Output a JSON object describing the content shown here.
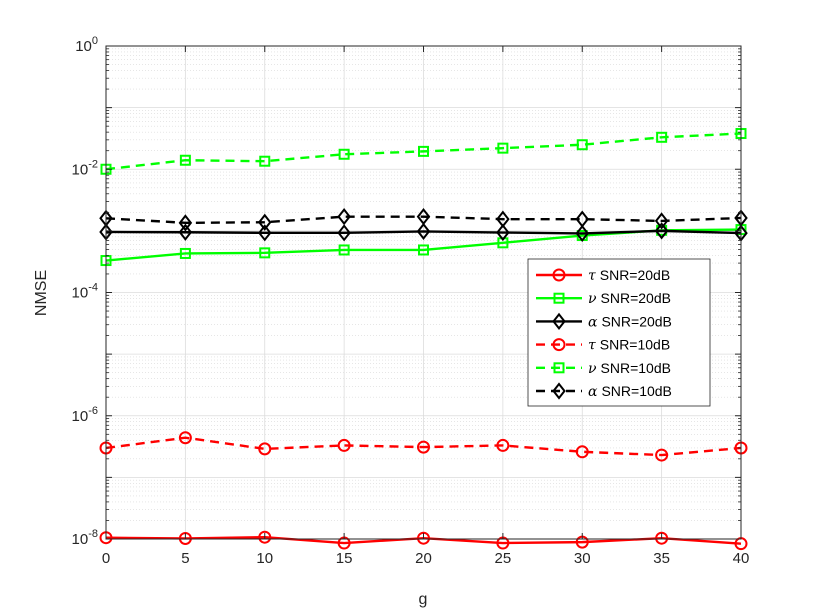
{
  "chart_data": {
    "type": "line",
    "xlabel": "g",
    "ylabel": "NMSE",
    "xlim": [
      0,
      40
    ],
    "ylim": [
      1e-08,
      1
    ],
    "y_scale": "log",
    "x_ticks": [
      0,
      5,
      10,
      15,
      20,
      25,
      30,
      35,
      40
    ],
    "y_ticks": [
      {
        "base": "10",
        "exp": "-8",
        "value": 1e-08
      },
      {
        "base": "10",
        "exp": "-6",
        "value": 1e-06
      },
      {
        "base": "10",
        "exp": "-4",
        "value": 0.0001
      },
      {
        "base": "10",
        "exp": "-2",
        "value": 0.01
      },
      {
        "base": "10",
        "exp": "0",
        "value": 1
      }
    ],
    "grid": true,
    "minor_grid": true,
    "legend_position": "right",
    "x": [
      0,
      5,
      10,
      15,
      20,
      25,
      30,
      35,
      40
    ],
    "series": [
      {
        "symbol": "τ",
        "label": "SNR=20dB",
        "color": "#ff0000",
        "line": "solid",
        "marker": "circle",
        "values": [
          1.05e-08,
          1.02e-08,
          1.07e-08,
          8.6e-09,
          1.03e-08,
          8.6e-09,
          8.9e-09,
          1.03e-08,
          8.4e-09
        ]
      },
      {
        "symbol": "ν",
        "label": "SNR=20dB",
        "color": "#00ff00",
        "line": "solid",
        "marker": "square",
        "values": [
          0.00033,
          0.00043,
          0.00044,
          0.00049,
          0.00049,
          0.00064,
          0.00084,
          0.00102,
          0.00105
        ]
      },
      {
        "symbol": "α",
        "label": "SNR=20dB",
        "color": "#000000",
        "line": "solid",
        "marker": "diamond",
        "values": [
          0.00096,
          0.00095,
          0.00093,
          0.00093,
          0.00098,
          0.00094,
          0.00091,
          0.001,
          0.00092
        ]
      },
      {
        "symbol": "τ",
        "label": "SNR=10dB",
        "color": "#ff0000",
        "line": "dashed",
        "marker": "circle",
        "values": [
          3e-07,
          4.4e-07,
          2.9e-07,
          3.3e-07,
          3.1e-07,
          3.3e-07,
          2.6e-07,
          2.3e-07,
          3e-07
        ]
      },
      {
        "symbol": "ν",
        "label": "SNR=10dB",
        "color": "#00ff00",
        "line": "dashed",
        "marker": "square",
        "values": [
          0.01,
          0.014,
          0.0135,
          0.0175,
          0.0195,
          0.022,
          0.025,
          0.033,
          0.038
        ]
      },
      {
        "symbol": "α",
        "label": "SNR=10dB",
        "color": "#000000",
        "line": "dashed",
        "marker": "diamond",
        "values": [
          0.0016,
          0.00135,
          0.00138,
          0.0017,
          0.0017,
          0.00155,
          0.00155,
          0.00145,
          0.00162
        ]
      }
    ]
  }
}
